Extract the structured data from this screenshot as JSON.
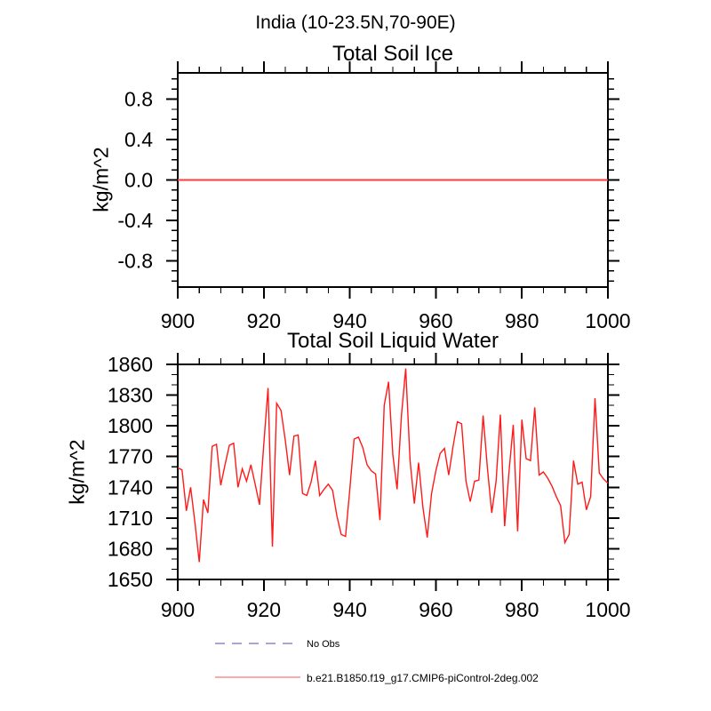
{
  "page_title": "India (10-23.5N,70-90E)",
  "chart_data": {
    "charts": [
      {
        "type": "line",
        "title": "Total Soil Ice",
        "ylabel": "kg/m^2",
        "line_color": "#ff3b3b",
        "line_width": 2,
        "xlim": [
          900,
          1000
        ],
        "ylim": [
          -1.06,
          1.06
        ],
        "xticks_major": [
          900,
          920,
          940,
          960,
          980,
          1000
        ],
        "x_minor_step": 5,
        "yticks_major": [
          0.8,
          0.4,
          0.0,
          -0.4,
          -0.8
        ],
        "ytick_labels": [
          "0.8",
          "0.4",
          "0.0",
          "-0.4",
          "-0.8"
        ],
        "y_minor_step": 0.1,
        "x_start": 900,
        "x_step": 1,
        "values": [
          0,
          0,
          0,
          0,
          0,
          0,
          0,
          0,
          0,
          0,
          0,
          0,
          0,
          0,
          0,
          0,
          0,
          0,
          0,
          0,
          0,
          0,
          0,
          0,
          0,
          0,
          0,
          0,
          0,
          0,
          0,
          0,
          0,
          0,
          0,
          0,
          0,
          0,
          0,
          0,
          0,
          0,
          0,
          0,
          0,
          0,
          0,
          0,
          0,
          0,
          0,
          0,
          0,
          0,
          0,
          0,
          0,
          0,
          0,
          0,
          0,
          0,
          0,
          0,
          0,
          0,
          0,
          0,
          0,
          0,
          0,
          0,
          0,
          0,
          0,
          0,
          0,
          0,
          0,
          0,
          0,
          0,
          0,
          0,
          0,
          0,
          0,
          0,
          0,
          0,
          0,
          0,
          0,
          0,
          0,
          0,
          0,
          0,
          0,
          0,
          0
        ]
      },
      {
        "type": "line",
        "title": "Total Soil Liquid Water",
        "ylabel": "kg/m^2",
        "line_color": "#ff1a1a",
        "line_width": 1.4,
        "xlim": [
          900,
          1000
        ],
        "ylim": [
          1650,
          1860
        ],
        "xticks_major": [
          900,
          920,
          940,
          960,
          980,
          1000
        ],
        "x_minor_step": 5,
        "yticks_major": [
          1860,
          1830,
          1800,
          1770,
          1740,
          1710,
          1680,
          1650
        ],
        "ytick_labels": [
          "1860",
          "1830",
          "1800",
          "1770",
          "1740",
          "1710",
          "1680",
          "1650"
        ],
        "y_minor_step": 10,
        "x_start": 900,
        "x_step": 1,
        "values": [
          1759,
          1757,
          1717,
          1740,
          1705,
          1667,
          1728,
          1715,
          1780,
          1782,
          1742,
          1762,
          1781,
          1783,
          1740,
          1758,
          1746,
          1762,
          1743,
          1723,
          1782,
          1837,
          1682,
          1822,
          1815,
          1786,
          1752,
          1790,
          1791,
          1734,
          1732,
          1745,
          1766,
          1732,
          1738,
          1743,
          1737,
          1712,
          1694,
          1692,
          1738,
          1787,
          1789,
          1779,
          1762,
          1756,
          1753,
          1708,
          1820,
          1843,
          1772,
          1738,
          1810,
          1856,
          1766,
          1724,
          1764,
          1720,
          1691,
          1734,
          1756,
          1773,
          1778,
          1752,
          1780,
          1804,
          1802,
          1746,
          1726,
          1746,
          1747,
          1810,
          1758,
          1715,
          1746,
          1811,
          1702,
          1755,
          1801,
          1697,
          1806,
          1768,
          1766,
          1818,
          1752,
          1755,
          1749,
          1741,
          1731,
          1722,
          1686,
          1694,
          1766,
          1743,
          1745,
          1718,
          1731,
          1827,
          1754,
          1748,
          1744
        ]
      }
    ],
    "legend": {
      "position": "bottom-left",
      "entries": [
        {
          "label": "No Obs",
          "color": "#a6a6dd",
          "style": "dashed"
        },
        {
          "label": "b.e21.B1850.f19_g17.CMIP6-piControl-2deg.002",
          "color": "#ff8d8d",
          "style": "solid"
        }
      ]
    },
    "axis_color": "#000000",
    "tick_label_color": "#000000"
  }
}
